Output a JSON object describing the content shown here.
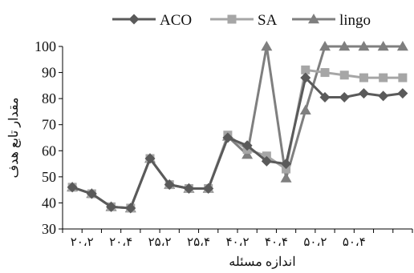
{
  "chart_data": {
    "type": "line",
    "title": "",
    "xlabel": "اندازه مسئله",
    "ylabel": "مقدار تابع هدف",
    "ylim": [
      30,
      100
    ],
    "yticks": [
      30,
      40,
      50,
      60,
      70,
      80,
      90,
      100
    ],
    "grid": false,
    "legend_position": "top",
    "x_tick_labels": [
      "۲۰،۲",
      "۲۰،۴",
      "۲۵،۲",
      "۲۵،۴",
      "۴۰،۲",
      "۴۰،۴",
      "۵۰،۲",
      "۵۰،۴"
    ],
    "categories": [
      "1",
      "2",
      "3",
      "4",
      "5",
      "6",
      "7",
      "8",
      "9",
      "10",
      "11",
      "12",
      "13",
      "14",
      "15",
      "16",
      "17",
      "18"
    ],
    "series": [
      {
        "name": "ACO",
        "color": "#5a5a5a",
        "marker": "diamond",
        "values": [
          46,
          43.5,
          38.5,
          38,
          57,
          47,
          45.5,
          45.5,
          65,
          62,
          56,
          55,
          88,
          80.5,
          80.5,
          82,
          81,
          82
        ]
      },
      {
        "name": "SA",
        "color": "#a6a6a6",
        "marker": "square",
        "values": [
          46,
          43.5,
          38.5,
          38,
          57,
          47,
          45.5,
          45.5,
          66,
          60.5,
          58,
          53,
          91,
          90,
          89,
          88,
          88,
          88
        ]
      },
      {
        "name": "lingo",
        "color": "#7f7f7f",
        "marker": "triangle",
        "values": [
          46,
          43.5,
          38.5,
          38,
          57,
          47,
          45.5,
          45.5,
          65.5,
          58.5,
          100,
          49.5,
          75.5,
          100,
          100,
          100,
          100,
          100
        ]
      }
    ]
  }
}
